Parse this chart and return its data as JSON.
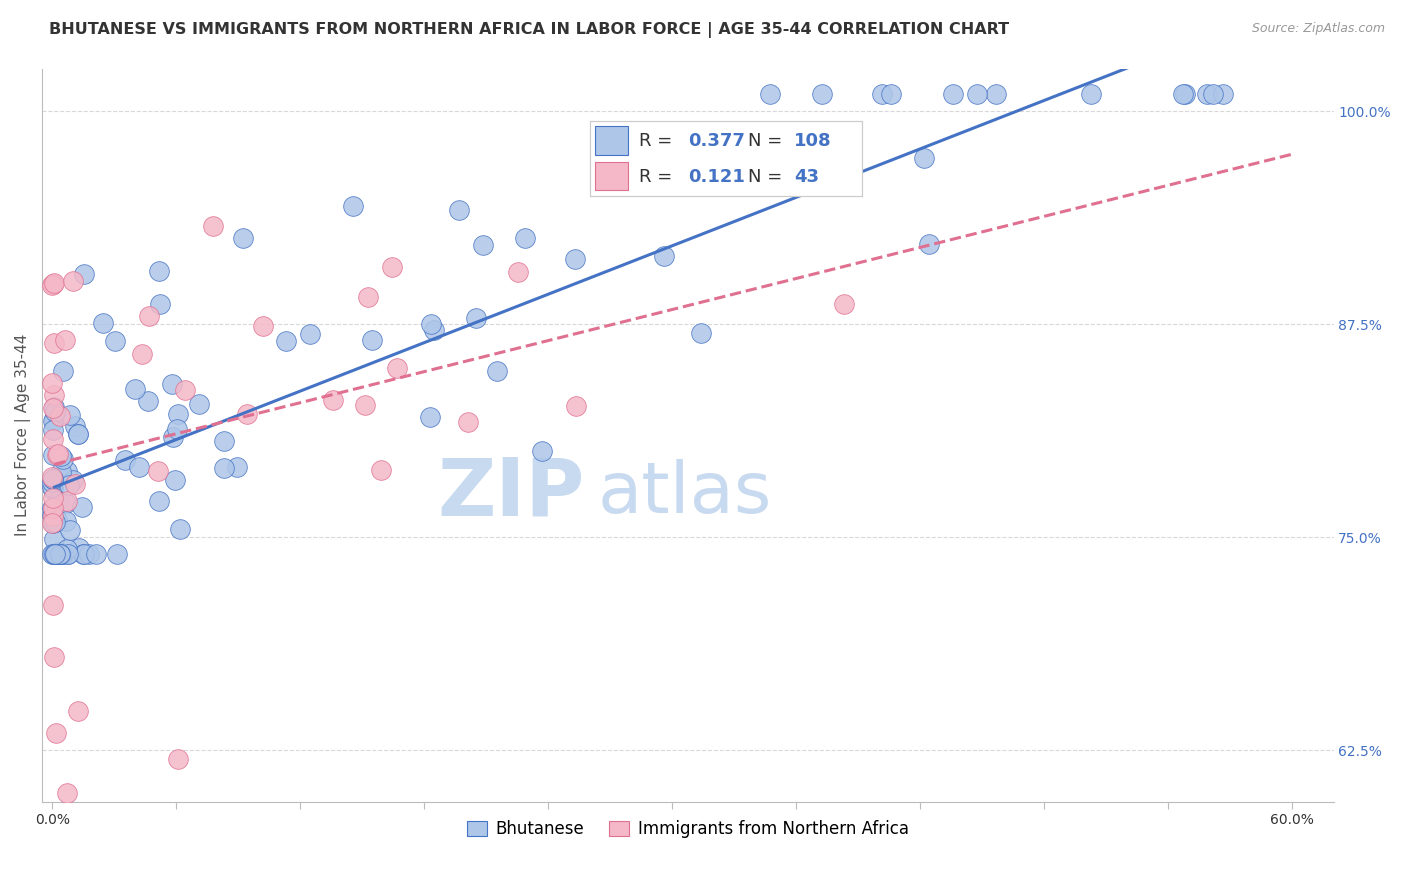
{
  "title": "BHUTANESE VS IMMIGRANTS FROM NORTHERN AFRICA IN LABOR FORCE | AGE 35-44 CORRELATION CHART",
  "source": "Source: ZipAtlas.com",
  "ylabel": "In Labor Force | Age 35-44",
  "x_tick_labels": [
    "0.0%",
    "",
    "",
    "",
    "",
    "",
    "",
    "",
    "",
    "",
    "60.0%"
  ],
  "x_tick_values": [
    0.0,
    0.06,
    0.12,
    0.18,
    0.24,
    0.3,
    0.36,
    0.42,
    0.48,
    0.54,
    0.6
  ],
  "xlim": [
    -0.005,
    0.62
  ],
  "ylim": [
    0.595,
    1.025
  ],
  "y_tick_labels": [
    "62.5%",
    "75.0%",
    "87.5%",
    "100.0%"
  ],
  "y_tick_values": [
    0.625,
    0.75,
    0.875,
    1.0
  ],
  "blue_R": "0.377",
  "blue_N": "108",
  "pink_R": "0.121",
  "pink_N": "43",
  "blue_color": "#aec6e8",
  "pink_color": "#f4b8c8",
  "blue_line_color": "#4472c4",
  "pink_line_color": "#e07090",
  "watermark_zip": "ZIP",
  "watermark_atlas": "atlas",
  "watermark_color": "#c8daf0",
  "legend_blue_label": "Bhutanese",
  "legend_pink_label": "Immigrants from Northern Africa",
  "background_color": "#ffffff",
  "grid_color": "#d8d8d8",
  "title_fontsize": 11.5,
  "axis_label_fontsize": 11,
  "tick_fontsize": 10,
  "watermark_fontsize_zip": 58,
  "watermark_fontsize_atlas": 52
}
